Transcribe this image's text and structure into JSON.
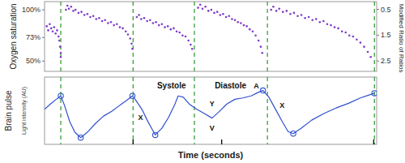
{
  "chart_data": [
    {
      "type": "scatter",
      "y_label": "Oxygen saturation",
      "y2_label": "Modified Ratio of Ratios",
      "color": "#7d3cc8",
      "marker": "circle",
      "tick_labels": "y",
      "xlim": [
        0,
        4.5
      ],
      "ylim": [
        40,
        108
      ],
      "yticks": [
        {
          "value": 100,
          "label": "100%"
        },
        {
          "value": 73,
          "label": "73%"
        },
        {
          "value": 50,
          "label": "50%"
        }
      ],
      "y2lim": [
        2.9,
        0.2
      ],
      "y2ticks": [
        0.5,
        1.5,
        2.5
      ],
      "vlines": {
        "x": [
          0.22,
          1.2,
          2.03,
          3.02,
          4.47
        ],
        "color": "#3aa03a",
        "line_style": "dashed"
      },
      "x": [
        0.03,
        0.05,
        0.07,
        0.09,
        0.11,
        0.13,
        0.15,
        0.17,
        0.19,
        0.2,
        0.21,
        0.22,
        0.22,
        0.29,
        0.31,
        0.33,
        0.36,
        0.39,
        0.42,
        0.46,
        0.5,
        0.54,
        0.58,
        0.62,
        0.66,
        0.7,
        0.74,
        0.78,
        0.82,
        0.86,
        0.9,
        0.94,
        0.98,
        1.02,
        1.06,
        1.1,
        1.13,
        1.16,
        1.18,
        1.19,
        1.25,
        1.28,
        1.31,
        1.35,
        1.39,
        1.43,
        1.47,
        1.51,
        1.55,
        1.59,
        1.63,
        1.67,
        1.71,
        1.75,
        1.79,
        1.83,
        1.87,
        1.91,
        1.95,
        1.98,
        2.0,
        2.08,
        2.11,
        2.14,
        2.18,
        2.22,
        2.26,
        2.3,
        2.34,
        2.38,
        2.42,
        2.46,
        2.5,
        2.54,
        2.58,
        2.62,
        2.66,
        2.7,
        2.74,
        2.78,
        2.82,
        2.86,
        2.9,
        2.93,
        2.95,
        3.07,
        3.1,
        3.14,
        3.18,
        3.23,
        3.28,
        3.33,
        3.38,
        3.43,
        3.48,
        3.53,
        3.58,
        3.63,
        3.68,
        3.73,
        3.78,
        3.83,
        3.88,
        3.93,
        3.98,
        4.03,
        4.08,
        4.13,
        4.18,
        4.23,
        4.28,
        4.33,
        4.38,
        4.42
      ],
      "values": [
        84,
        80,
        86,
        82,
        79,
        83,
        77,
        80,
        74,
        70,
        64,
        58,
        54,
        100,
        104,
        101,
        103,
        99,
        100,
        97,
        98,
        95,
        96,
        93,
        94,
        91,
        92,
        89,
        90,
        87,
        88,
        85,
        86,
        83,
        82,
        79,
        76,
        72,
        67,
        62,
        93,
        95,
        91,
        92,
        89,
        90,
        87,
        88,
        85,
        86,
        83,
        84,
        81,
        82,
        79,
        78,
        75,
        74,
        70,
        66,
        62,
        102,
        105,
        101,
        103,
        99,
        100,
        97,
        98,
        95,
        96,
        93,
        94,
        91,
        90,
        88,
        87,
        85,
        84,
        81,
        79,
        75,
        70,
        64,
        58,
        100,
        103,
        99,
        101,
        98,
        99,
        96,
        97,
        94,
        95,
        92,
        93,
        90,
        91,
        88,
        89,
        86,
        85,
        83,
        82,
        79,
        78,
        75,
        74,
        71,
        68,
        64,
        59,
        54
      ]
    },
    {
      "type": "line",
      "y_label": "Brain pulse",
      "y_sublabel": "Light intensity (AU)",
      "x_label": "Time (seconds)",
      "color": "#3050d0",
      "tick_labels": false,
      "xlim": [
        0,
        4.5
      ],
      "ylim": [
        0,
        100
      ],
      "xticks": [
        1.2,
        2.4,
        4.46
      ],
      "vlines": {
        "x": [
          0.22,
          1.2,
          2.03,
          3.02,
          4.47
        ],
        "color": "#3aa03a",
        "line_style": "dashed"
      },
      "x": [
        0,
        0.08,
        0.16,
        0.22,
        0.27,
        0.34,
        0.41,
        0.49,
        0.58,
        0.69,
        0.8,
        0.91,
        1.02,
        1.11,
        1.19,
        1.24,
        1.32,
        1.39,
        1.46,
        1.5,
        1.59,
        1.68,
        1.76,
        1.81,
        1.88,
        1.96,
        2.05,
        2.16,
        2.27,
        2.36,
        2.47,
        2.58,
        2.69,
        2.8,
        2.89,
        2.96,
        3.04,
        3.13,
        3.22,
        3.3,
        3.37,
        3.48,
        3.62,
        3.79,
        3.95,
        4.12,
        4.28,
        4.39,
        4.47
      ],
      "values": [
        52,
        60,
        67,
        72,
        58,
        34,
        18,
        10,
        18,
        31,
        42,
        49,
        58,
        65,
        72,
        65,
        52,
        36,
        22,
        14,
        24,
        40,
        58,
        72,
        70,
        60,
        53,
        46,
        39,
        48,
        60,
        67,
        69,
        72,
        77,
        80,
        70,
        52,
        34,
        19,
        16,
        24,
        36,
        46,
        54,
        61,
        69,
        73,
        76
      ],
      "circled_x": [
        0.22,
        0.49,
        1.19,
        1.5,
        2.96,
        3.37,
        4.47
      ],
      "annotations": [
        {
          "text": "Systole",
          "x": 1.72,
          "y": 87
        },
        {
          "text": "X",
          "x": 1.3,
          "y": 40
        },
        {
          "text": "Diastole",
          "x": 2.52,
          "y": 87
        },
        {
          "text": "Y",
          "x": 2.27,
          "y": 60
        },
        {
          "text": "V",
          "x": 2.27,
          "y": 24
        },
        {
          "text": "A",
          "x": 2.87,
          "y": 87
        },
        {
          "text": "X",
          "x": 3.22,
          "y": 58
        }
      ]
    }
  ]
}
